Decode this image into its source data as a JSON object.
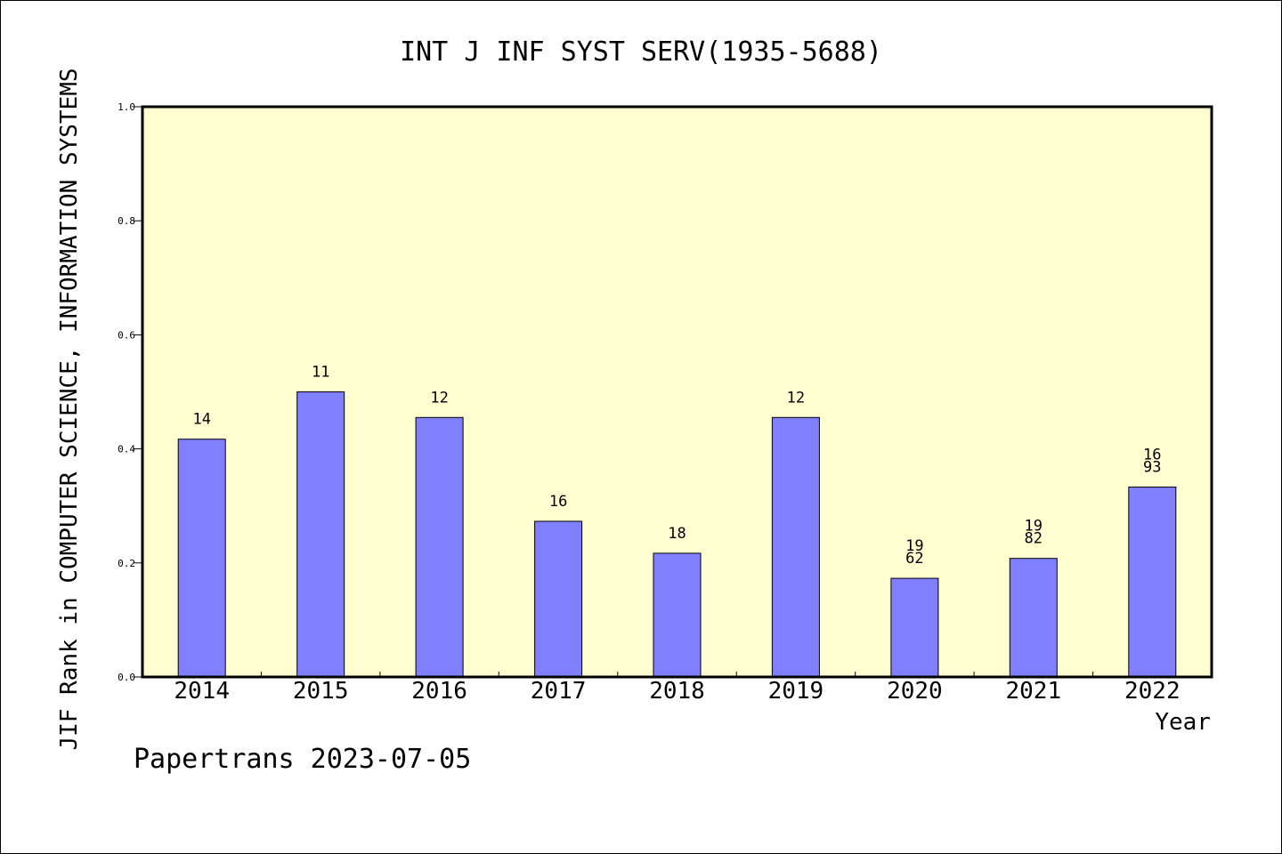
{
  "chart_data": {
    "type": "bar",
    "title": "INT J INF SYST SERV(1935-5688)",
    "xlabel": "Year",
    "ylabel": "JIF Rank in COMPUTER SCIENCE, INFORMATION SYSTEMS",
    "ylim": [
      0.0,
      1.0
    ],
    "yticks": [
      "0.0",
      "0.2",
      "0.4",
      "0.6",
      "0.8",
      "1.0"
    ],
    "grid": false,
    "categories": [
      "2014",
      "2015",
      "2016",
      "2017",
      "2018",
      "2019",
      "2020",
      "2021",
      "2022"
    ],
    "values": [
      0.417,
      0.5,
      0.455,
      0.273,
      0.217,
      0.455,
      0.173,
      0.208,
      0.333
    ],
    "bar_labels": [
      [
        "14"
      ],
      [
        "11"
      ],
      [
        "12"
      ],
      [
        "16"
      ],
      [
        "18"
      ],
      [
        "12"
      ],
      [
        "19",
        "62"
      ],
      [
        "19",
        "82"
      ],
      [
        "16",
        "93"
      ]
    ],
    "colors": {
      "plot_bg": "#ffffd2",
      "bar_fill": "#8080ff",
      "bar_stroke": "#000000"
    }
  },
  "footer": {
    "text": "Papertrans 2023-07-05"
  }
}
